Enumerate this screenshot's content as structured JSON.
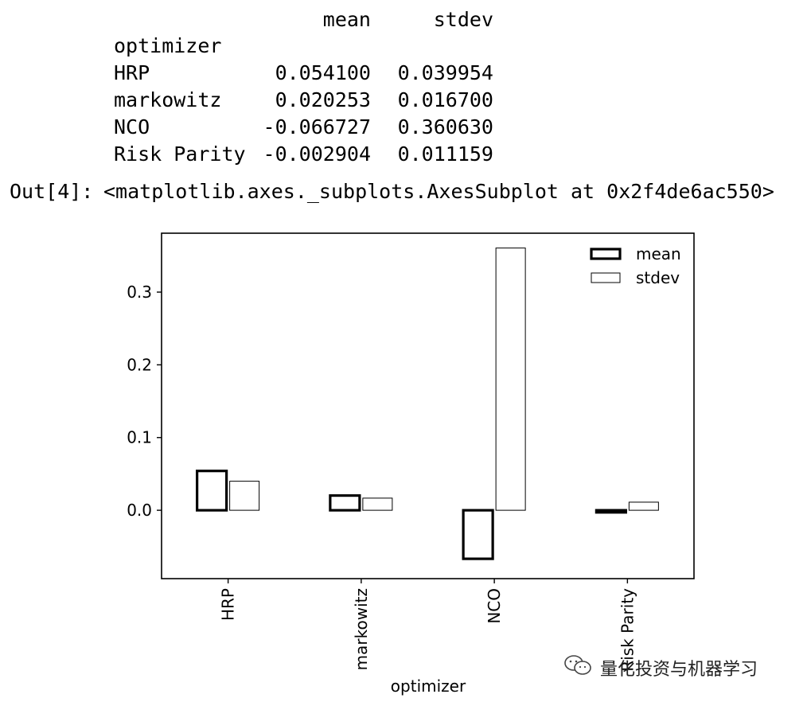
{
  "dataframe": {
    "columns": [
      "mean",
      "stdev"
    ],
    "index_name": "optimizer",
    "rows": [
      {
        "label": "HRP",
        "mean": "0.054100",
        "stdev": "0.039954"
      },
      {
        "label": "markowitz",
        "mean": "0.020253",
        "stdev": "0.016700"
      },
      {
        "label": "NCO",
        "mean": "-0.066727",
        "stdev": "0.360630"
      },
      {
        "label": "Risk Parity",
        "mean": "-0.002904",
        "stdev": "0.011159"
      }
    ]
  },
  "output": {
    "prompt": "Out[4]:",
    "repr": "<matplotlib.axes._subplots.AxesSubplot at 0x2f4de6ac550>"
  },
  "chart_data": {
    "type": "bar",
    "categories": [
      "HRP",
      "markowitz",
      "NCO",
      "Risk Parity"
    ],
    "series": [
      {
        "name": "mean",
        "values": [
          0.0541,
          0.020253,
          -0.066727,
          -0.002904
        ]
      },
      {
        "name": "stdev",
        "values": [
          0.039954,
          0.0167,
          0.36063,
          0.011159
        ]
      }
    ],
    "xlabel": "optimizer",
    "ylabel": "",
    "ylim": [
      -0.094,
      0.381
    ],
    "yticks": [
      0.0,
      0.1,
      0.2,
      0.3
    ],
    "ytick_labels": [
      "0.0",
      "0.1",
      "0.2",
      "0.3"
    ],
    "legend_position": "top-right",
    "grid": false
  },
  "watermark": {
    "text": "量化投资与机器学习",
    "icon": "wechat-icon"
  }
}
